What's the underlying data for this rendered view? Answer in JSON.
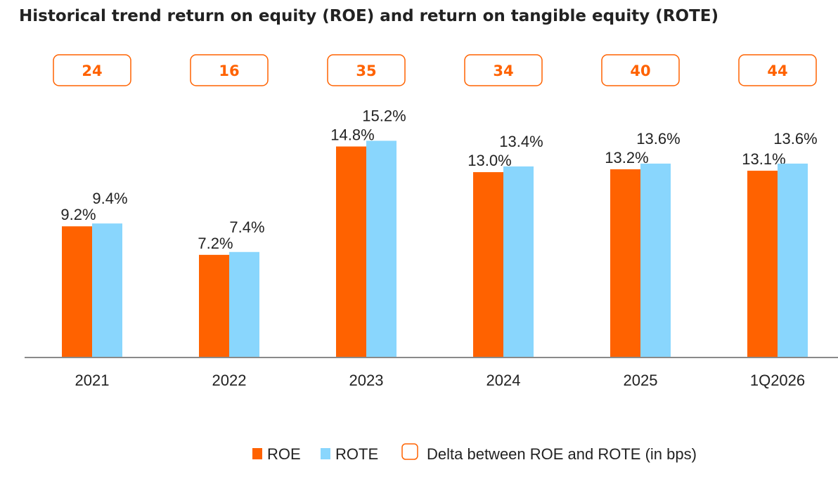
{
  "chart_data": {
    "type": "bar",
    "title": "Historical trend return on equity (ROE) and return on tangible equity (ROTE)",
    "categories": [
      "2021",
      "2022",
      "2023",
      "2024",
      "2025",
      "1Q2026"
    ],
    "series": [
      {
        "name": "ROE",
        "values": [
          9.2,
          7.2,
          14.8,
          13.0,
          13.2,
          13.1
        ],
        "labels": [
          "9.2%",
          "7.2%",
          "14.8%",
          "13.0%",
          "13.2%",
          "13.1%"
        ],
        "color": "#ff6200"
      },
      {
        "name": "ROTE",
        "values": [
          9.4,
          7.4,
          15.2,
          13.4,
          13.6,
          13.6
        ],
        "labels": [
          "9.4%",
          "7.4%",
          "15.2%",
          "13.4%",
          "13.6%",
          "13.6%"
        ],
        "color": "#89d6fd"
      }
    ],
    "delta": {
      "name": "Delta between ROE and ROTE (in bps)",
      "values": [
        24,
        16,
        35,
        34,
        40,
        44
      ],
      "color": "#ff6200"
    },
    "ylim": [
      0,
      16
    ],
    "xlabel": "",
    "ylabel": "",
    "grid": false,
    "legend": "bottom",
    "axis_color": "#8a8a8a"
  }
}
